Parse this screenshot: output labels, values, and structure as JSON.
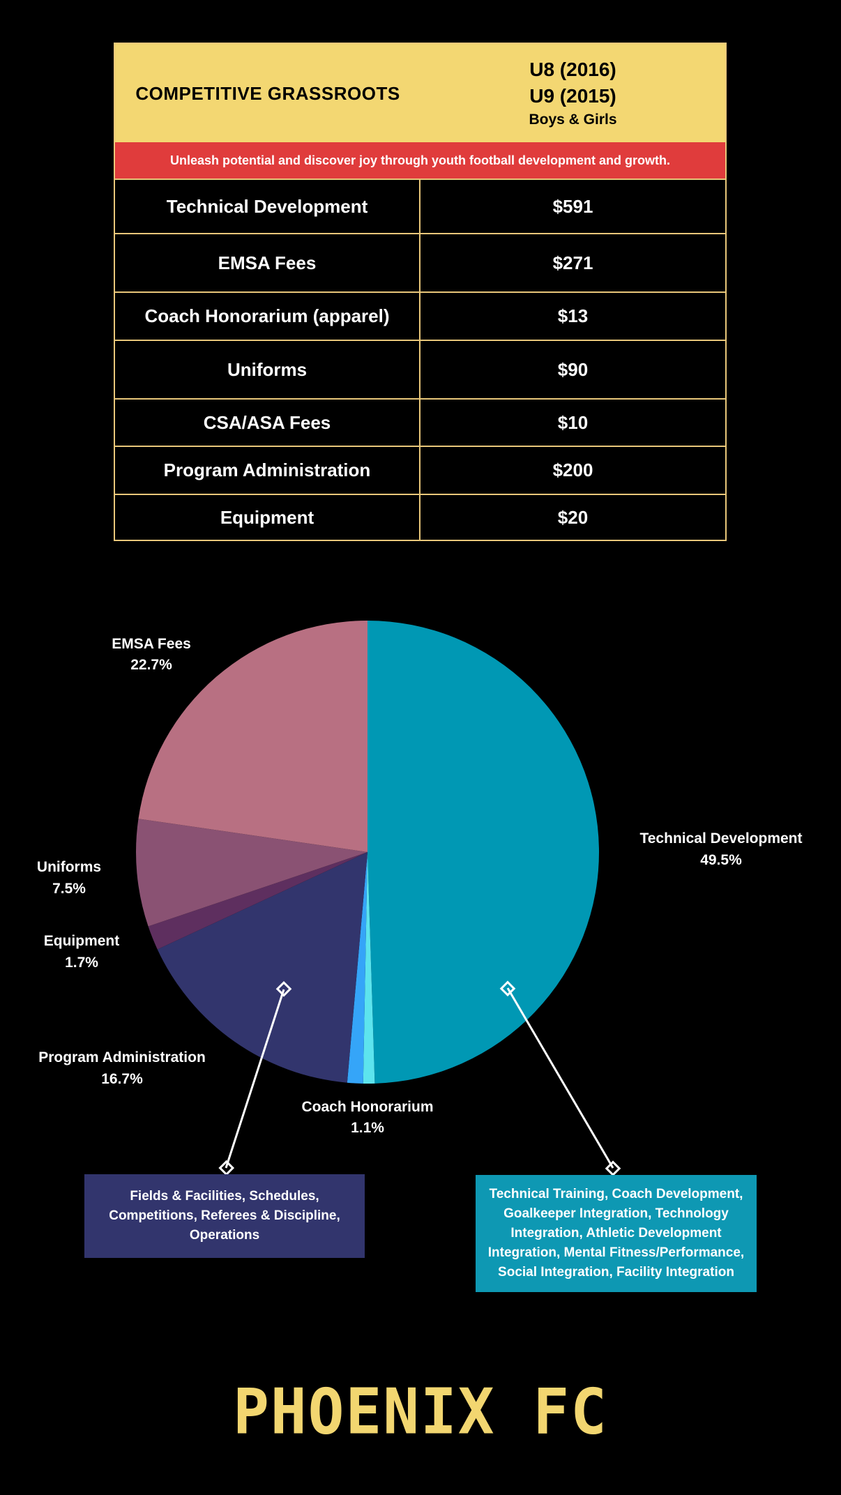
{
  "table": {
    "program_title": "COMPETITIVE GRASSROOTS",
    "age_u8": "U8 (2016)",
    "age_u9": "U9 (2015)",
    "gender": "Boys & Girls",
    "tagline": "Unleash potential and discover joy through youth football development and growth.",
    "rows": [
      {
        "name": "Technical Development",
        "amount": "$591"
      },
      {
        "name": "EMSA Fees",
        "amount": "$271"
      },
      {
        "name": "Coach Honorarium (apparel)",
        "amount": "$13"
      },
      {
        "name": "Uniforms",
        "amount": "$90"
      },
      {
        "name": "CSA/ASA Fees",
        "amount": "$10"
      },
      {
        "name": "Program Administration",
        "amount": "$200"
      },
      {
        "name": "Equipment",
        "amount": "$20"
      }
    ]
  },
  "chart_data": {
    "type": "pie",
    "title": "",
    "slices": [
      {
        "label": "Technical Development",
        "value": 49.5,
        "display": "49.5%",
        "color": "#0098b4"
      },
      {
        "label": "CSA/ASA Fees",
        "value": 0.8,
        "display": "",
        "color": "#5de4ee"
      },
      {
        "label": "Coach Honorarium",
        "value": 1.1,
        "display": "1.1%",
        "color": "#35a5f8"
      },
      {
        "label": "Program Administration",
        "value": 16.7,
        "display": "16.7%",
        "color": "#32356d"
      },
      {
        "label": "Equipment",
        "value": 1.7,
        "display": "1.7%",
        "color": "#5e2f5f"
      },
      {
        "label": "Uniforms",
        "value": 7.5,
        "display": "7.5%",
        "color": "#8a5273"
      },
      {
        "label": "EMSA Fees",
        "value": 22.7,
        "display": "22.7%",
        "color": "#b87082"
      }
    ]
  },
  "callouts": {
    "admin": "Fields & Facilities, Schedules, Competitions, Referees & Discipline, Operations",
    "tech": "Technical Training, Coach Development, Goalkeeper Integration, Technology Integration, Athletic Development Integration, Mental Fitness/Performance, Social Integration, Facility Integration"
  },
  "brand": "PHOENIX FC",
  "colors": {
    "header_bg": "#f3d772",
    "tagline_bg": "#e03c3c",
    "border": "#e9c77a",
    "brand": "#f2d670"
  }
}
